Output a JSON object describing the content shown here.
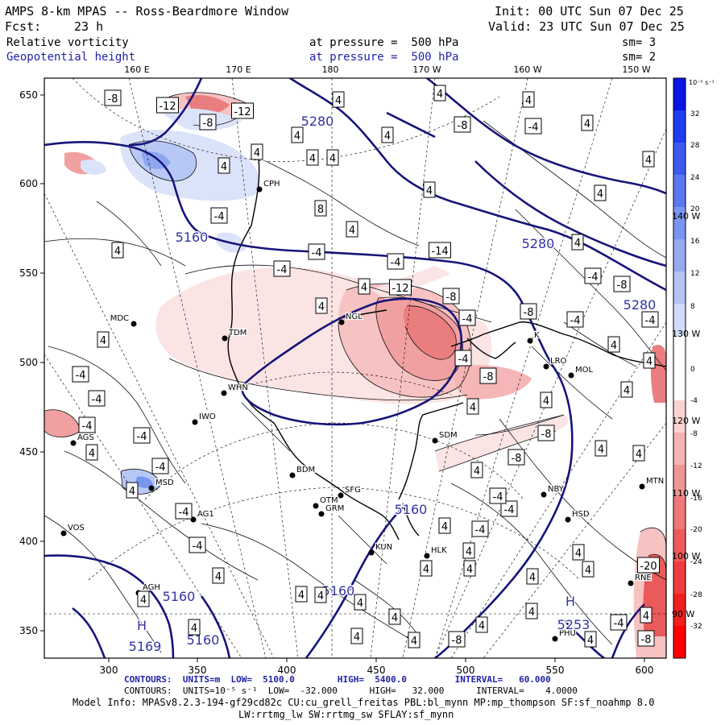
{
  "header": {
    "title": "AMPS 8-km MPAS -- Ross-Beardmore Window",
    "init": "Init: 00 UTC Sun 07 Dec 25",
    "fcst_label": "Fcst:",
    "fcst_value": "23 h",
    "valid": "Valid: 23 UTC Sun 07 Dec 25",
    "field1_name": "Relative vorticity",
    "field1_level": "at pressure =  500 hPa",
    "field1_sm": "sm= 3",
    "field2_name": "Geopotential height",
    "field2_level": "at pressure =  500 hPa",
    "field2_sm": "sm= 2"
  },
  "lon_labels_top": [
    "160 E",
    "170 E",
    "180",
    "170 W",
    "160 W",
    "150 W"
  ],
  "lon_labels_right": [
    "140 W",
    "130 W",
    "120 W",
    "110 W",
    "100 W",
    "90 W"
  ],
  "y_ticks": [
    "650",
    "600",
    "550",
    "500",
    "450",
    "400",
    "350"
  ],
  "x_ticks": [
    "300",
    "350",
    "400",
    "450",
    "500",
    "550",
    "600"
  ],
  "colorbar": {
    "unit_label": "10⁻⁵ s⁻¹",
    "labels": [
      "32",
      "28",
      "24",
      "20",
      "16",
      "12",
      "8",
      "0",
      "-4",
      "-8",
      "-12",
      "-16",
      "-20",
      "-24",
      "-28",
      "-32"
    ],
    "colors": [
      "#0a14e6",
      "#1e3cf0",
      "#3c5af0",
      "#5a78f0",
      "#7896f0",
      "#96aaf0",
      "#b4c3f5",
      "#d2dcfa",
      "#ffffff",
      "#ffffff",
      "#fad2d2",
      "#f5b4b4",
      "#f09696",
      "#f07878",
      "#f05a5a",
      "#f03c3c",
      "#f01e1e",
      "#ff0000"
    ]
  },
  "stations": [
    {
      "code": "MDC"
    },
    {
      "code": "TDM"
    },
    {
      "code": "WHN"
    },
    {
      "code": "IWO"
    },
    {
      "code": "AGS"
    },
    {
      "code": "MSD"
    },
    {
      "code": "VOS"
    },
    {
      "code": "AG1"
    },
    {
      "code": "AGH"
    },
    {
      "code": "CPH"
    },
    {
      "code": "NGL"
    },
    {
      "code": "BDM"
    },
    {
      "code": "SFG"
    },
    {
      "code": "OTM"
    },
    {
      "code": "GRM"
    },
    {
      "code": "KUN"
    },
    {
      "code": "HLK"
    },
    {
      "code": "SDM"
    },
    {
      "code": "MOL"
    },
    {
      "code": "LRO"
    },
    {
      "code": "NBY"
    },
    {
      "code": "HSD"
    },
    {
      "code": "MTN"
    },
    {
      "code": "RNE"
    },
    {
      "code": "PHU"
    },
    {
      "code": "K"
    }
  ],
  "height_labels": [
    "5280",
    "5160",
    "5280",
    "5280",
    "5160",
    "5160",
    "5160",
    "5169",
    "5253",
    "H",
    "H",
    "5160"
  ],
  "vort_labels": [
    "-8",
    "-12",
    "-8",
    "-12",
    "4",
    "4",
    "4",
    "-8",
    "-4",
    "4",
    "4",
    "4",
    "4",
    "4",
    "4",
    "4",
    "4",
    "4",
    "-4",
    "4",
    "8",
    "4",
    "-4",
    "4",
    "-4",
    "-14",
    "-4",
    "4",
    "-8",
    "-12",
    "-4",
    "-8",
    "4",
    "4",
    "4",
    "-8",
    "-4",
    "-4",
    "-4",
    "-4",
    "-4",
    "-4",
    "-4",
    "-4",
    "-4",
    "4",
    "4",
    "-4",
    "-4",
    "4",
    "4",
    "4",
    "-8",
    "-8",
    "-8",
    "4",
    "4",
    "4",
    "-4",
    "-4",
    "4",
    "4",
    "4",
    "4",
    "4",
    "4",
    "4",
    "4",
    "4",
    "4",
    "4",
    "-8",
    "4",
    "-4",
    "4",
    "-20",
    "-8",
    "4",
    "4",
    "4",
    "4",
    "4",
    "4",
    "4",
    "-4",
    "4",
    "4"
  ],
  "footer": {
    "contours1": "CONTOURS:  UNITS=m  LOW=  5100.0        HIGH=  5400.0         INTERVAL=   60.000",
    "contours2": "CONTOURS:  UNITS=10⁻⁵ s⁻¹  LOW=  -32.000      HIGH=   32.000      INTERVAL=    4.0000",
    "model_info": "Model Info: MPASv8.2.3-194-gf29cd82c CU:cu_grell_freitas PBL:bl_mynn MP:mp_thompson SF:sf_noahmp 8.0",
    "model_info2": "LW:rrtmg_lw SW:rrtmg_sw SFLAY:sf_mynn"
  }
}
